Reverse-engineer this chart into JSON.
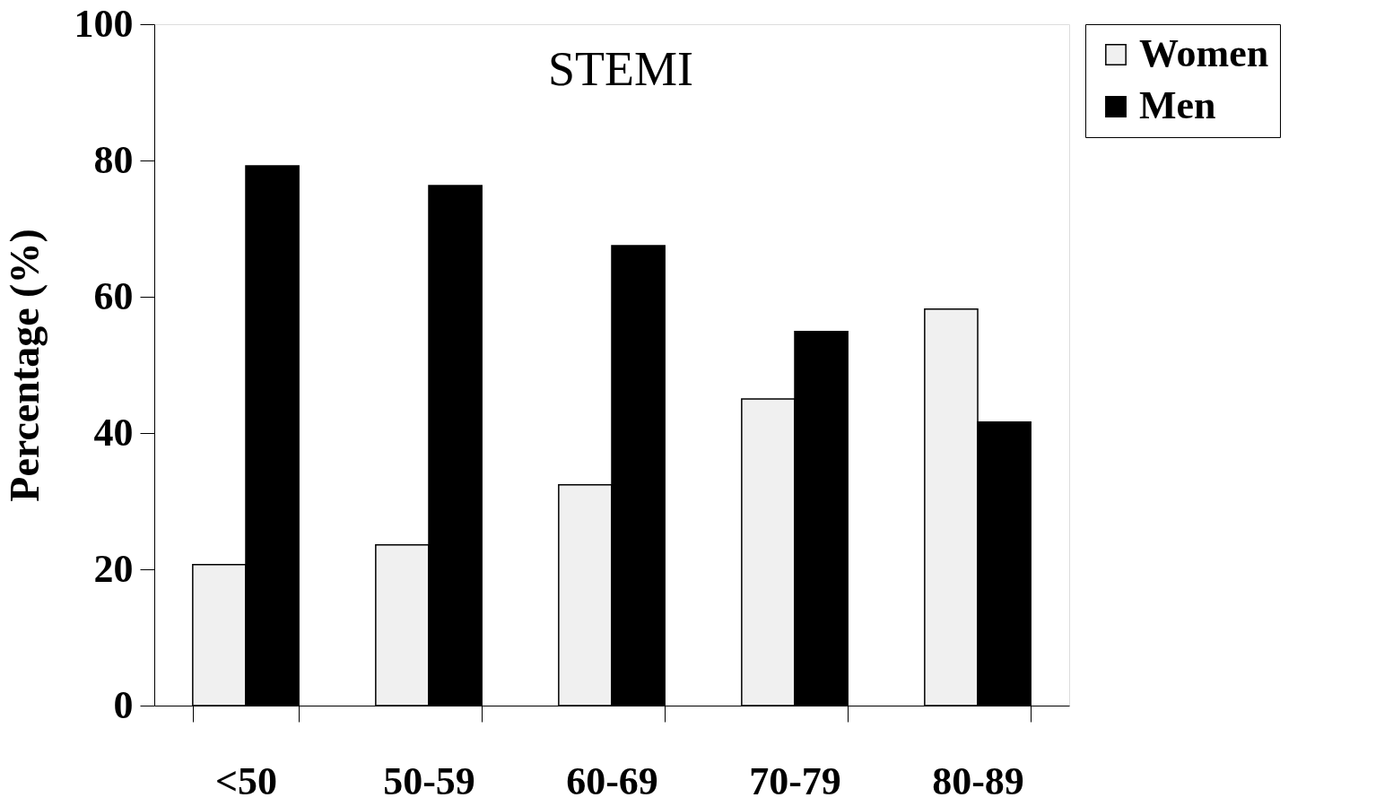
{
  "chart_data": {
    "type": "bar",
    "title": "STEMI",
    "ylabel": "Percentage (%)",
    "categories": [
      "<50",
      "50-59",
      "60-69",
      "70-79",
      "80-89"
    ],
    "series": [
      {
        "name": "Women",
        "color": "#f0f0f0",
        "values": [
          20.7,
          23.6,
          32.4,
          45.0,
          58.2
        ]
      },
      {
        "name": "Men",
        "color": "#000000",
        "values": [
          79.2,
          76.3,
          67.5,
          54.9,
          41.6
        ]
      }
    ],
    "ylim": [
      0,
      100
    ],
    "yticks": [
      0,
      20,
      40,
      60,
      80,
      100
    ],
    "grid": false,
    "legend": "right"
  }
}
